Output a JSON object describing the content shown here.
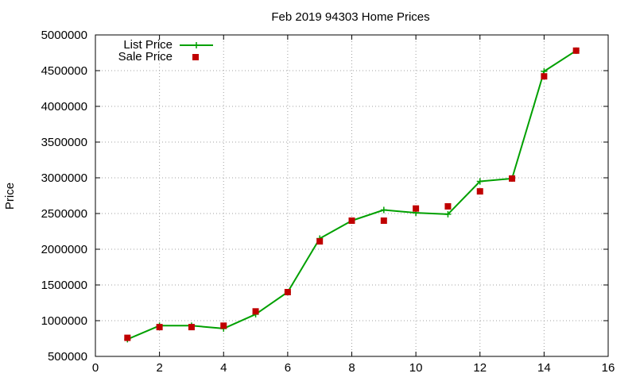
{
  "chart_data": {
    "type": "line",
    "title": "Feb 2019 94303 Home Prices",
    "xlabel": "",
    "ylabel": "Price",
    "xlim": [
      0,
      16
    ],
    "ylim": [
      500000,
      5000000
    ],
    "x_ticks": [
      0,
      2,
      4,
      6,
      8,
      10,
      12,
      14,
      16
    ],
    "y_ticks": [
      500000,
      1000000,
      1500000,
      2000000,
      2500000,
      3000000,
      3500000,
      4000000,
      4500000,
      5000000
    ],
    "grid": true,
    "legend_position": "top-left",
    "x": [
      1,
      2,
      3,
      4,
      5,
      6,
      7,
      8,
      9,
      10,
      11,
      12,
      13,
      14,
      15
    ],
    "series": [
      {
        "name": "List Price",
        "style": "linespoints",
        "marker": "plus",
        "color": "#00a000",
        "values": [
          740000,
          930000,
          930000,
          890000,
          1090000,
          1400000,
          2150000,
          2400000,
          2550000,
          2510000,
          2490000,
          2950000,
          2990000,
          4490000,
          4780000
        ]
      },
      {
        "name": "Sale Price",
        "style": "points",
        "marker": "square",
        "color": "#c00000",
        "values": [
          760000,
          910000,
          910000,
          930000,
          1130000,
          1400000,
          2110000,
          2400000,
          2400000,
          2570000,
          2600000,
          2810000,
          2990000,
          4420000,
          4780000
        ]
      }
    ]
  }
}
